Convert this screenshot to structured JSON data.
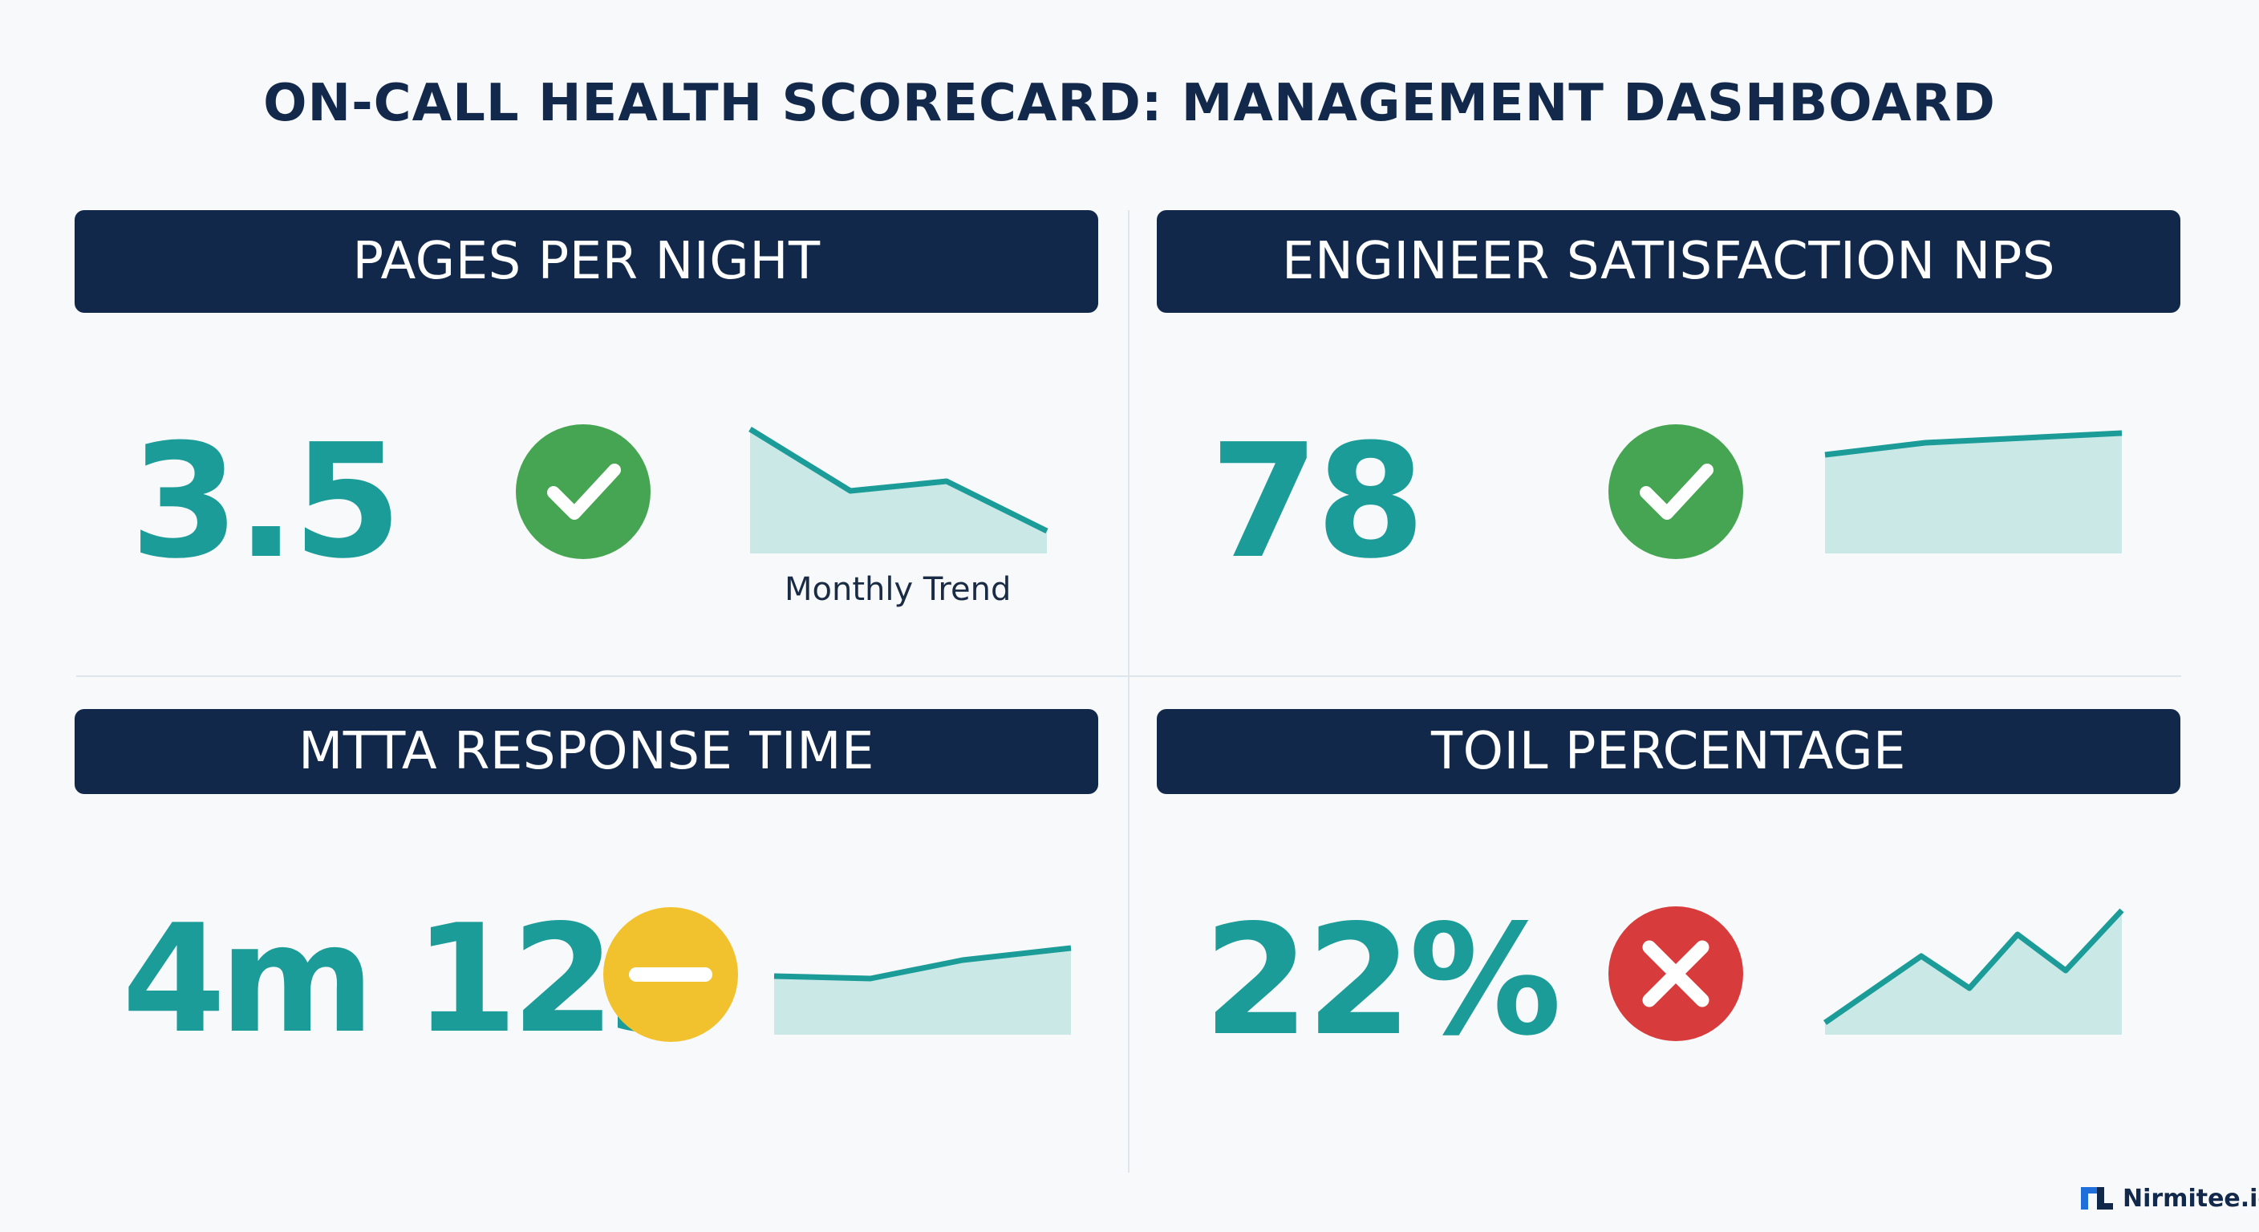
{
  "header": {
    "title": "ON-CALL HEALTH SCORECARD: MANAGEMENT DASHBOARD"
  },
  "colors": {
    "navy": "#12284b",
    "teal": "#1b9c98",
    "area_fill": "#c9e8e6",
    "ok_green": "#46a552",
    "warn_yellow": "#f2c12e",
    "bad_red": "#d83b3b"
  },
  "metrics": [
    {
      "title": "PAGES PER NIGHT",
      "value": "3.5",
      "status": "ok",
      "status_icon": "check-icon",
      "trend_label": "Monthly Trend"
    },
    {
      "title": "ENGINEER SATISFACTION NPS",
      "value": "78",
      "status": "ok",
      "status_icon": "check-icon"
    },
    {
      "title": "MTTA RESPONSE TIME",
      "value": "4m 12s",
      "status": "warn",
      "status_icon": "minus-icon"
    },
    {
      "title": "TOIL PERCENTAGE",
      "value": "22%",
      "status": "bad",
      "status_icon": "x-icon"
    }
  ],
  "footer": {
    "brand": "Nirmitee.io",
    "brand_icon": "nirmitee-logo-icon"
  }
}
